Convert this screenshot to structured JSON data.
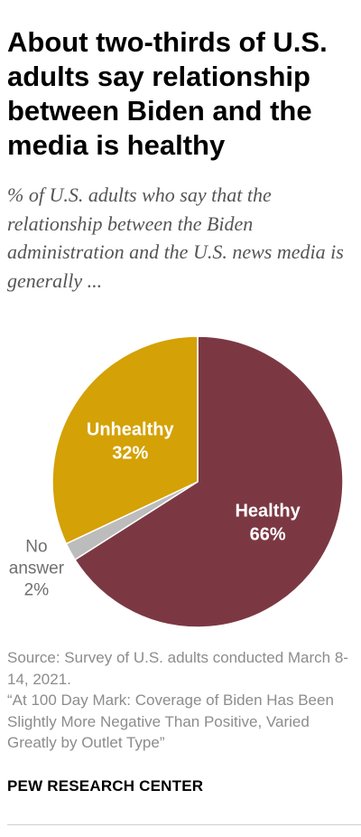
{
  "header": {
    "title": "About two-thirds of U.S. adults say relationship between Biden and the media is healthy",
    "subtitle": "% of U.S. adults who say that the relationship between the Biden administration and the U.S. news media is generally ..."
  },
  "chart_data": {
    "type": "pie",
    "slices": [
      {
        "label": "Healthy",
        "value": 66,
        "display": "66%",
        "color": "#7b3843",
        "label_color": "#ffffff"
      },
      {
        "label": "No answer",
        "value": 2,
        "display": "2%",
        "color": "#bcbcbc",
        "label_color": "#6f6f6f"
      },
      {
        "label": "Unhealthy",
        "value": 32,
        "display": "32%",
        "color": "#d4a106",
        "label_color": "#ffffff"
      }
    ],
    "start": "12 o'clock",
    "direction": "clockwise"
  },
  "footer": {
    "source_line1": "Source: Survey of U.S. adults conducted March 8-14, 2021.",
    "source_line2": "“At 100 Day Mark: Coverage of Biden Has Been Slightly More Negative Than Positive, Varied Greatly by Outlet Type”",
    "brand": "PEW RESEARCH CENTER"
  }
}
